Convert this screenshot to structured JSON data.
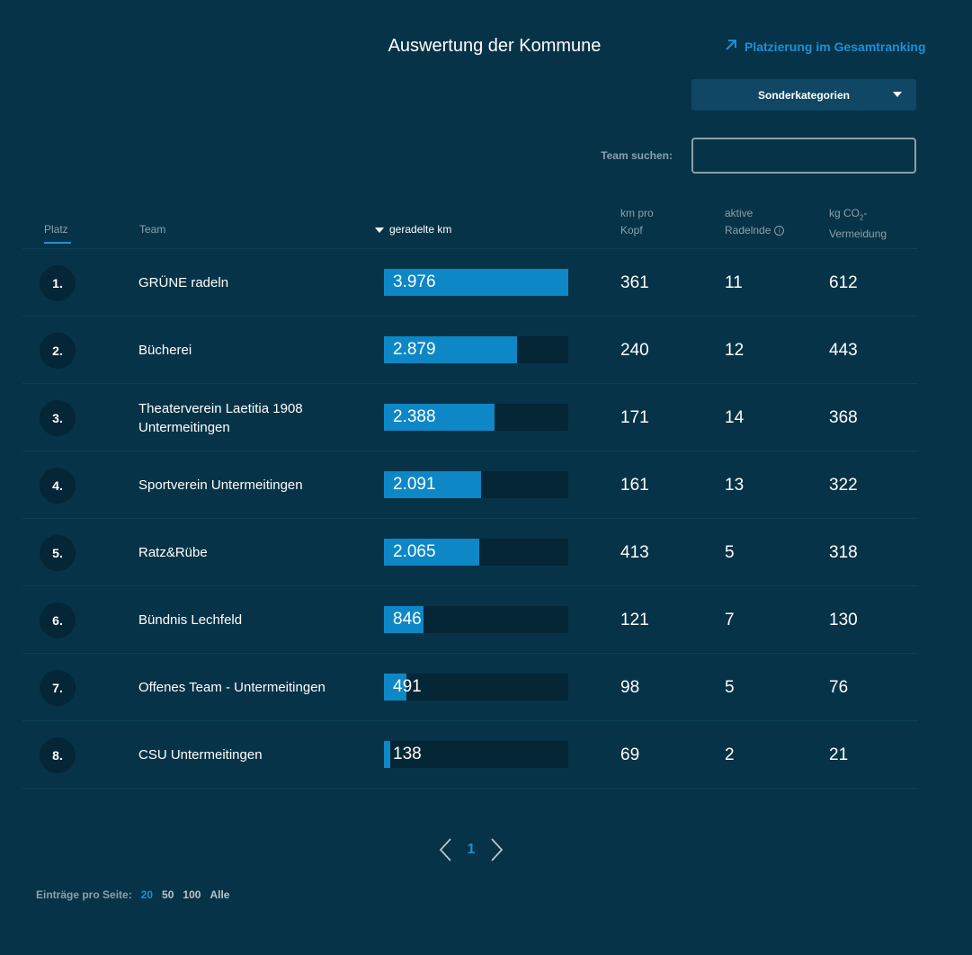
{
  "header": {
    "title": "Auswertung der Kommune",
    "ranking_link": "Platzierung im Gesamtranking",
    "dropdown_label": "Sonderkategorien",
    "search_label": "Team suchen:",
    "search_value": ""
  },
  "columns": {
    "platz": "Platz",
    "team": "Team",
    "km": "geradelte km",
    "kopf_line1": "km pro",
    "kopf_line2": "Kopf",
    "aktive_line1": "aktive",
    "aktive_line2": "Radelnde",
    "co2_line1": "kg CO",
    "co2_sub": "2",
    "co2_dash": "-",
    "co2_line2": "Vermeidung"
  },
  "rows": [
    {
      "rank": "1.",
      "team": "GRÜNE radeln",
      "km": "3.976",
      "km_value": 3976,
      "kopf": "361",
      "aktive": "11",
      "co2": "612"
    },
    {
      "rank": "2.",
      "team": "Bücherei",
      "km": "2.879",
      "km_value": 2879,
      "kopf": "240",
      "aktive": "12",
      "co2": "443"
    },
    {
      "rank": "3.",
      "team": "Theaterverein Laetitia 1908 Untermeitingen",
      "km": "2.388",
      "km_value": 2388,
      "kopf": "171",
      "aktive": "14",
      "co2": "368"
    },
    {
      "rank": "4.",
      "team": "Sportverein Untermeitingen",
      "km": "2.091",
      "km_value": 2091,
      "kopf": "161",
      "aktive": "13",
      "co2": "322"
    },
    {
      "rank": "5.",
      "team": "Ratz&Rübe",
      "km": "2.065",
      "km_value": 2065,
      "kopf": "413",
      "aktive": "5",
      "co2": "318"
    },
    {
      "rank": "6.",
      "team": "Bündnis Lechfeld",
      "km": "846",
      "km_value": 846,
      "kopf": "121",
      "aktive": "7",
      "co2": "130"
    },
    {
      "rank": "7.",
      "team": "Offenes Team - Untermeitingen",
      "km": "491",
      "km_value": 491,
      "kopf": "98",
      "aktive": "5",
      "co2": "76"
    },
    {
      "rank": "8.",
      "team": "CSU Untermeitingen",
      "km": "138",
      "km_value": 138,
      "kopf": "69",
      "aktive": "2",
      "co2": "21"
    }
  ],
  "pagination": {
    "current_page": "1",
    "prev_icon": "chevron-left-icon",
    "next_icon": "chevron-right-icon"
  },
  "per_page": {
    "label": "Einträge pro Seite:",
    "options": [
      "20",
      "50",
      "100",
      "Alle"
    ],
    "selected": "20"
  },
  "colors": {
    "background": "#063347",
    "accent": "#1e8fd6",
    "bar": "#0d87c6"
  }
}
